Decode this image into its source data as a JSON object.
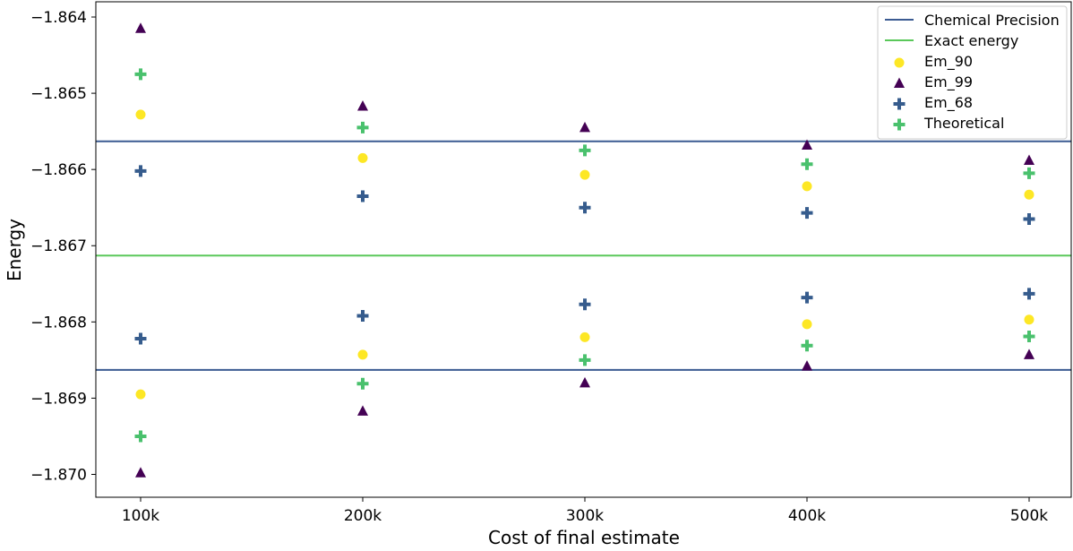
{
  "chart_data": {
    "type": "scatter",
    "title": "",
    "xlabel": "Cost of final estimate",
    "ylabel": "Energy",
    "categories": [
      "100k",
      "200k",
      "300k",
      "400k",
      "500k"
    ],
    "ylim": [
      -1.8703,
      -1.8638
    ],
    "yticks": [
      {
        "value": -1.864,
        "label": "−1.864"
      },
      {
        "value": -1.865,
        "label": "−1.865"
      },
      {
        "value": -1.866,
        "label": "−1.866"
      },
      {
        "value": -1.867,
        "label": "−1.867"
      },
      {
        "value": -1.868,
        "label": "−1.868"
      },
      {
        "value": -1.869,
        "label": "−1.869"
      },
      {
        "value": -1.87,
        "label": "−1.870"
      }
    ],
    "grid": false,
    "legend_position": "top-right",
    "reference_lines": [
      {
        "name": "Chemical Precision",
        "color": "#3b5b92",
        "values": [
          -1.86563,
          -1.86863
        ]
      },
      {
        "name": "Exact energy",
        "color": "#5ac85a",
        "values": [
          -1.86713
        ]
      }
    ],
    "series": [
      {
        "name": "Em_90",
        "marker": "circle",
        "color": "#fde725",
        "low": [
          -1.86895,
          -1.86843,
          -1.8682,
          -1.86803,
          -1.86797
        ],
        "high": [
          -1.86528,
          -1.86585,
          -1.86607,
          -1.86622,
          -1.86633
        ]
      },
      {
        "name": "Em_99",
        "marker": "triangle",
        "color": "#440154",
        "low": [
          -1.86998,
          -1.86917,
          -1.8688,
          -1.86858,
          -1.86843
        ],
        "high": [
          -1.86415,
          -1.86517,
          -1.86545,
          -1.86568,
          -1.86588
        ]
      },
      {
        "name": "Em_68",
        "marker": "plus",
        "color": "#365c8d",
        "low": [
          -1.86822,
          -1.86792,
          -1.86777,
          -1.86768,
          -1.86763
        ],
        "high": [
          -1.86602,
          -1.86635,
          -1.8665,
          -1.86657,
          -1.86665
        ]
      },
      {
        "name": "Theoretical",
        "marker": "plus",
        "color": "#4ac16d",
        "low": [
          -1.8695,
          -1.86881,
          -1.8685,
          -1.86831,
          -1.86819
        ],
        "high": [
          -1.86475,
          -1.86545,
          -1.86575,
          -1.86593,
          -1.86605
        ]
      }
    ]
  }
}
